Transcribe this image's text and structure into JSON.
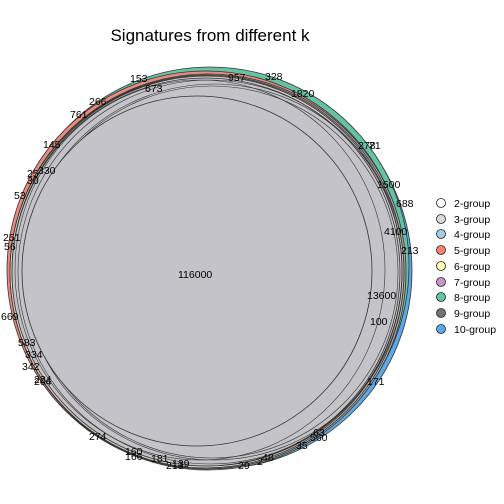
{
  "title": "Signatures from different k",
  "chart_data": {
    "type": "euler",
    "title": "Signatures from different k",
    "legend_position": "right",
    "sets": [
      {
        "name": "2-group",
        "color": "#ffffff"
      },
      {
        "name": "3-group",
        "color": "#d9d9d9"
      },
      {
        "name": "4-group",
        "color": "#a6cee3"
      },
      {
        "name": "5-group",
        "color": "#fb8072"
      },
      {
        "name": "6-group",
        "color": "#ffffb3"
      },
      {
        "name": "7-group",
        "color": "#c994c7"
      },
      {
        "name": "8-group",
        "color": "#66c2a5"
      },
      {
        "name": "9-group",
        "color": "#737373"
      },
      {
        "name": "10-group",
        "color": "#5aa9e6"
      }
    ],
    "region_labels": [
      "116000",
      "13600",
      "4100",
      "1500",
      "1820",
      "957",
      "328",
      "153",
      "673",
      "266",
      "761",
      "145",
      "330",
      "25",
      "30",
      "53",
      "251",
      "56",
      "669",
      "583",
      "334",
      "342",
      "224",
      "204",
      "274",
      "160",
      "166",
      "181",
      "213",
      "139",
      "29",
      "2",
      "48",
      "35",
      "560",
      "63",
      "171",
      "100",
      "213",
      "688",
      "278",
      "71"
    ]
  }
}
